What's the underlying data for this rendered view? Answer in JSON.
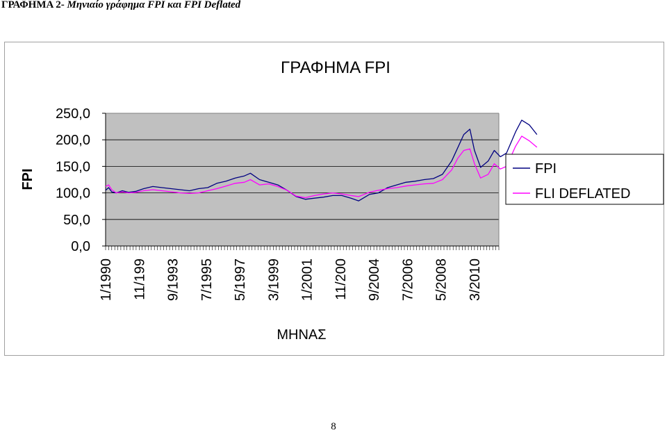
{
  "document": {
    "heading_main": "ΓΡΑΦΗΜΑ 2- ",
    "heading_sub": "Μηνιαίο γράφημα FPI και FPI Deflated",
    "page_number": "8"
  },
  "chart_data": {
    "type": "line",
    "title": "ΓΡΑΦΗΜΑ FPI",
    "xlabel": "ΜΗΝΑΣ",
    "ylabel": "FPI",
    "ylim": [
      0,
      250
    ],
    "y_ticks": [
      "250,0",
      "200,0",
      "150,0",
      "100,0",
      "50,0",
      "0,0"
    ],
    "x_tick_labels": [
      "1/1990",
      "11/199",
      "9/1993",
      "7/1995",
      "5/1997",
      "3/1999",
      "1/2001",
      "11/200",
      "9/2004",
      "7/2006",
      "5/2008",
      "3/2010"
    ],
    "x_start": "1/1990",
    "x_end": "7/2011",
    "plot_background": "#c0c0c0",
    "grid": true,
    "legend_position": "right",
    "series": [
      {
        "name": "FPI",
        "color": "#000080",
        "points": [
          [
            "1/1990",
            105
          ],
          [
            "3/1990",
            110
          ],
          [
            "5/1990",
            102
          ],
          [
            "8/1990",
            100
          ],
          [
            "12/1990",
            104
          ],
          [
            "4/1991",
            101
          ],
          [
            "9/1991",
            103
          ],
          [
            "2/1992",
            108
          ],
          [
            "8/1992",
            112
          ],
          [
            "2/1993",
            110
          ],
          [
            "8/1993",
            108
          ],
          [
            "2/1994",
            106
          ],
          [
            "8/1994",
            104
          ],
          [
            "2/1995",
            108
          ],
          [
            "8/1995",
            110
          ],
          [
            "2/1996",
            118
          ],
          [
            "8/1996",
            122
          ],
          [
            "2/1997",
            128
          ],
          [
            "8/1997",
            132
          ],
          [
            "12/1997",
            137
          ],
          [
            "6/1998",
            125
          ],
          [
            "12/1998",
            120
          ],
          [
            "6/1999",
            115
          ],
          [
            "12/1999",
            105
          ],
          [
            "6/2000",
            93
          ],
          [
            "12/2000",
            88
          ],
          [
            "6/2001",
            90
          ],
          [
            "12/2001",
            92
          ],
          [
            "6/2002",
            95
          ],
          [
            "12/2002",
            95
          ],
          [
            "6/2003",
            90
          ],
          [
            "11/2003",
            85
          ],
          [
            "6/2004",
            97
          ],
          [
            "12/2004",
            100
          ],
          [
            "6/2005",
            110
          ],
          [
            "12/2005",
            115
          ],
          [
            "6/2006",
            120
          ],
          [
            "12/2006",
            122
          ],
          [
            "6/2007",
            125
          ],
          [
            "12/2007",
            127
          ],
          [
            "6/2008",
            135
          ],
          [
            "12/2008",
            160
          ],
          [
            "4/2009",
            185
          ],
          [
            "8/2009",
            210
          ],
          [
            "12/2009",
            220
          ],
          [
            "3/2010",
            180
          ],
          [
            "7/2010",
            148
          ],
          [
            "12/2010",
            160
          ],
          [
            "4/2011",
            180
          ],
          [
            "8/2011",
            168
          ],
          [
            "12/2011",
            175
          ],
          [
            "6/2012",
            215
          ],
          [
            "10/2012",
            237
          ],
          [
            "3/2013",
            228
          ],
          [
            "8/2013",
            210
          ]
        ]
      },
      {
        "name": "FLI DEFLATED",
        "color": "#ff00ff",
        "points": [
          [
            "1/1990",
            112
          ],
          [
            "3/1990",
            115
          ],
          [
            "5/1990",
            106
          ],
          [
            "8/1990",
            100
          ],
          [
            "12/1990",
            102
          ],
          [
            "4/1991",
            100
          ],
          [
            "9/1991",
            101
          ],
          [
            "2/1992",
            104
          ],
          [
            "8/1992",
            106
          ],
          [
            "2/1993",
            104
          ],
          [
            "8/1993",
            102
          ],
          [
            "2/1994",
            100
          ],
          [
            "8/1994",
            99
          ],
          [
            "2/1995",
            100
          ],
          [
            "8/1995",
            104
          ],
          [
            "2/1996",
            108
          ],
          [
            "8/1996",
            113
          ],
          [
            "2/1997",
            118
          ],
          [
            "8/1997",
            120
          ],
          [
            "12/1997",
            125
          ],
          [
            "6/1998",
            115
          ],
          [
            "12/1998",
            117
          ],
          [
            "6/1999",
            112
          ],
          [
            "12/1999",
            105
          ],
          [
            "6/2000",
            94
          ],
          [
            "12/2000",
            91
          ],
          [
            "6/2001",
            95
          ],
          [
            "12/2001",
            98
          ],
          [
            "6/2002",
            100
          ],
          [
            "12/2002",
            98
          ],
          [
            "6/2003",
            95
          ],
          [
            "11/2003",
            93
          ],
          [
            "6/2004",
            101
          ],
          [
            "12/2004",
            105
          ],
          [
            "6/2005",
            108
          ],
          [
            "12/2005",
            110
          ],
          [
            "6/2006",
            113
          ],
          [
            "12/2006",
            115
          ],
          [
            "6/2007",
            117
          ],
          [
            "12/2007",
            118
          ],
          [
            "6/2008",
            125
          ],
          [
            "12/2008",
            143
          ],
          [
            "4/2009",
            165
          ],
          [
            "8/2009",
            180
          ],
          [
            "12/2009",
            183
          ],
          [
            "3/2010",
            155
          ],
          [
            "7/2010",
            128
          ],
          [
            "12/2010",
            135
          ],
          [
            "4/2011",
            155
          ],
          [
            "8/2011",
            145
          ],
          [
            "12/2011",
            150
          ],
          [
            "6/2012",
            188
          ],
          [
            "10/2012",
            207
          ],
          [
            "3/2013",
            198
          ],
          [
            "8/2013",
            186
          ]
        ]
      }
    ]
  }
}
